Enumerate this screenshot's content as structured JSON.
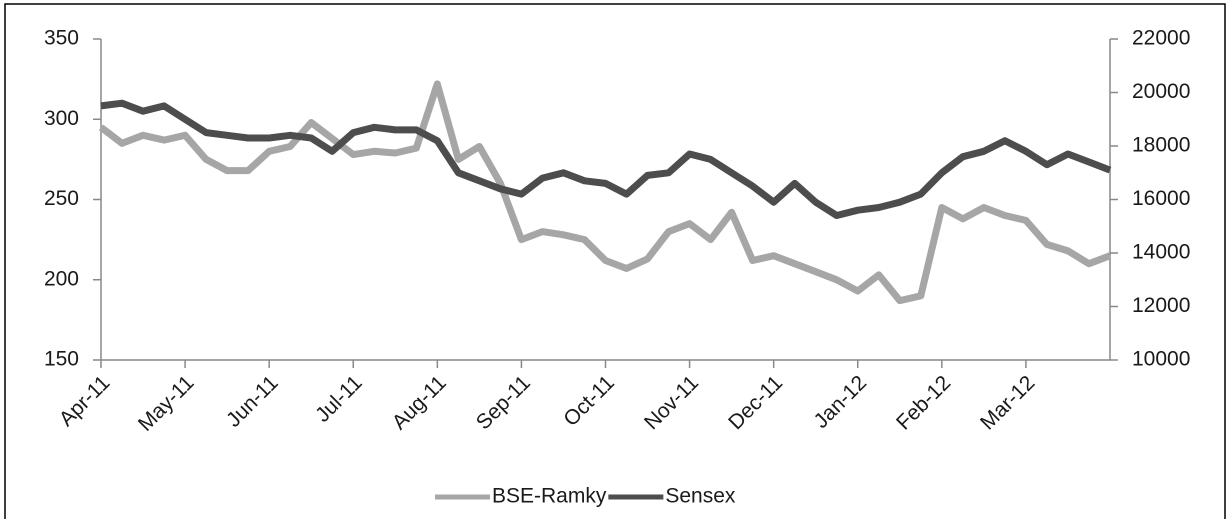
{
  "chart_data": {
    "type": "line",
    "categories": [
      "Apr-11",
      null,
      null,
      null,
      "May-11",
      null,
      null,
      null,
      "Jun-11",
      null,
      null,
      null,
      "Jul-11",
      null,
      null,
      null,
      "Aug-11",
      null,
      null,
      null,
      "Sep-11",
      null,
      null,
      null,
      "Oct-11",
      null,
      null,
      null,
      "Nov-11",
      null,
      null,
      null,
      "Dec-11",
      null,
      null,
      null,
      "Jan-12",
      null,
      null,
      null,
      "Feb-12",
      null,
      null,
      null,
      "Mar-12",
      null,
      null,
      null,
      null
    ],
    "series": [
      {
        "name": "BSE-Ramky",
        "color": "#a6a6a6",
        "axis": "y",
        "values": [
          295,
          285,
          290,
          287,
          290,
          275,
          268,
          268,
          280,
          283,
          298,
          288,
          278,
          280,
          279,
          282,
          322,
          275,
          283,
          260,
          225,
          230,
          228,
          225,
          212,
          207,
          213,
          230,
          235,
          225,
          242,
          212,
          215,
          210,
          205,
          200,
          193,
          203,
          187,
          190,
          245,
          238,
          245,
          240,
          237,
          222,
          218,
          210,
          215
        ]
      },
      {
        "name": "Sensex",
        "color": "#4d4d4d",
        "axis": "y2",
        "values": [
          19500,
          19600,
          19300,
          19500,
          19000,
          18500,
          18400,
          18300,
          18300,
          18400,
          18300,
          17800,
          18500,
          18700,
          18600,
          18600,
          18200,
          17000,
          16700,
          16400,
          16200,
          16800,
          17000,
          16700,
          16600,
          16200,
          16900,
          17000,
          17700,
          17500,
          17000,
          16500,
          15900,
          16600,
          15900,
          15400,
          15600,
          15700,
          15900,
          16200,
          17000,
          17600,
          17800,
          18200,
          17800,
          17300,
          17700,
          17400,
          17100
        ]
      }
    ],
    "ylim": [
      150,
      350
    ],
    "yticks": [
      150,
      200,
      250,
      300,
      350
    ],
    "y2lim": [
      10000,
      22000
    ],
    "y2ticks": [
      10000,
      12000,
      14000,
      16000,
      18000,
      20000,
      22000
    ],
    "legend": "bottom"
  }
}
